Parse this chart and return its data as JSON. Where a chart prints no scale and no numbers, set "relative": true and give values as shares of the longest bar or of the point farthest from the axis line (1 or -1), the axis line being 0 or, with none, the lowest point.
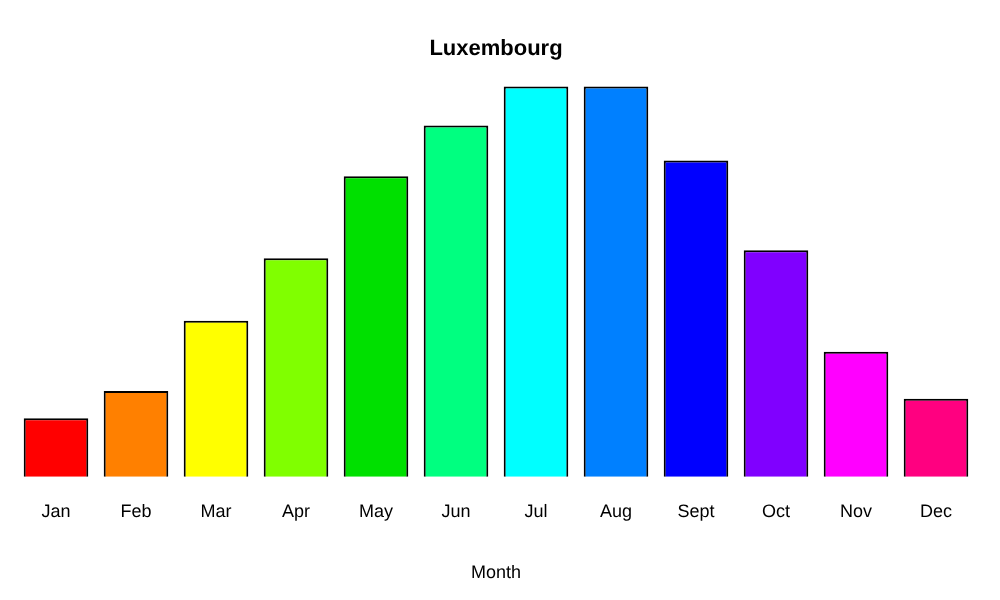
{
  "chart_data": {
    "type": "bar",
    "title": "Luxembourg",
    "xlabel": "Month",
    "relative": true,
    "categories": [
      "Jan",
      "Feb",
      "Mar",
      "Apr",
      "May",
      "Jun",
      "Jul",
      "Aug",
      "Sept",
      "Oct",
      "Nov",
      "Dec"
    ],
    "values": [
      0.15,
      0.22,
      0.4,
      0.56,
      0.77,
      0.9,
      1,
      1,
      0.81,
      0.58,
      0.32,
      0.2
    ],
    "colors": [
      "#ff0000",
      "#ff8000",
      "#ffff00",
      "#80ff00",
      "#00e000",
      "#00ff80",
      "#00ffff",
      "#0080ff",
      "#0000ff",
      "#8000ff",
      "#ff00ff",
      "#ff0080"
    ],
    "grid": false,
    "legend": false
  }
}
